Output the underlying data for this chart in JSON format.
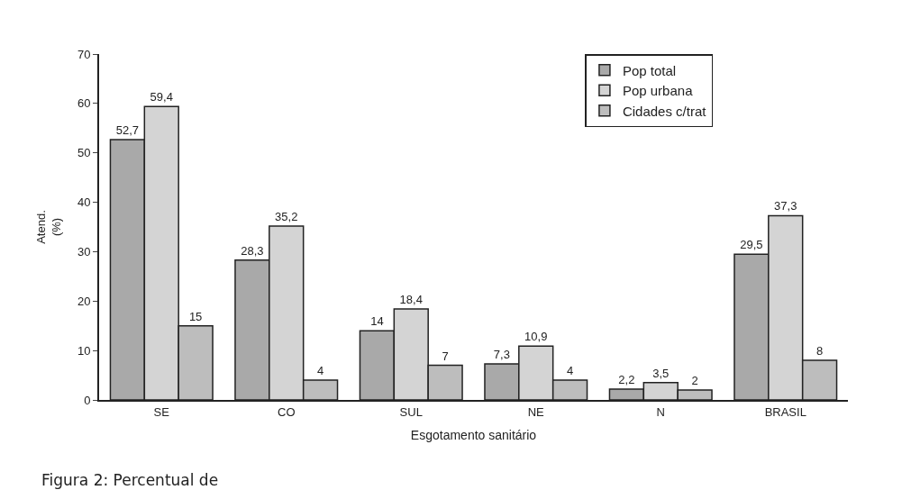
{
  "chart_data": {
    "type": "bar",
    "categories": [
      "SE",
      "CO",
      "SUL",
      "NE",
      "N",
      "BRASIL"
    ],
    "series": [
      {
        "name": "Pop total",
        "color": "#a9a9a9",
        "values": [
          52.7,
          28.3,
          14,
          7.3,
          2.2,
          29.5
        ],
        "value_labels": [
          "52,7",
          "28,3",
          "14",
          "7,3",
          "2,2",
          "29,5"
        ]
      },
      {
        "name": "Pop urbana",
        "color": "#d4d4d4",
        "values": [
          59.4,
          35.2,
          18.4,
          10.9,
          3.5,
          37.3
        ],
        "value_labels": [
          "59,4",
          "35,2",
          "18,4",
          "10,9",
          "3,5",
          "37,3"
        ]
      },
      {
        "name": "Cidades c/trat",
        "color": "#bdbdbd",
        "values": [
          15,
          4,
          7,
          4,
          2,
          8
        ],
        "value_labels": [
          "15",
          "4",
          "7",
          "4",
          "2",
          "8"
        ]
      }
    ],
    "xlabel": "Esgotamento sanitário",
    "ylabel": "Atend.\n(%)",
    "ylim": [
      0,
      70
    ],
    "yticks": [
      0,
      10,
      20,
      30,
      40,
      50,
      60,
      70
    ],
    "grid": false,
    "legend": "top right",
    "annotations": [
      "Figura 2: Percentual de"
    ]
  }
}
